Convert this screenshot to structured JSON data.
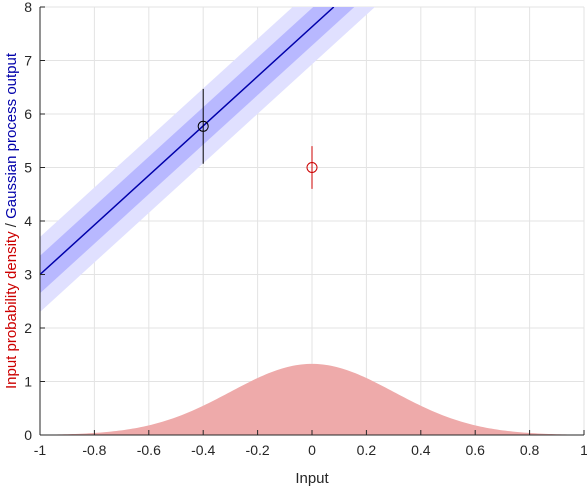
{
  "chart_data": {
    "type": "line",
    "xlabel": "Input",
    "ylabel_parts": [
      {
        "text": "Input probability density",
        "color": "#cc0000"
      },
      {
        "text": " / ",
        "color": "#262626"
      },
      {
        "text": "Gaussian process output",
        "color": "#0000aa"
      }
    ],
    "xlim": [
      -1,
      1
    ],
    "ylim": [
      0,
      8
    ],
    "xticks": [
      -1,
      -0.8,
      -0.6,
      -0.4,
      -0.2,
      0,
      0.2,
      0.4,
      0.6,
      0.8,
      1
    ],
    "xtick_labels": [
      "-1",
      "-0.8",
      "-0.6",
      "-0.4",
      "-0.2",
      "0",
      "0.2",
      "0.4",
      "0.6",
      "0.8",
      "1"
    ],
    "yticks": [
      0,
      1,
      2,
      3,
      4,
      5,
      6,
      7,
      8
    ],
    "ytick_labels": [
      "0",
      "1",
      "2",
      "3",
      "4",
      "5",
      "6",
      "7",
      "8"
    ],
    "grid": true,
    "gp_mean": {
      "x": [
        -1,
        0.08
      ],
      "y": [
        3.0,
        8.0
      ],
      "color": "#0000aa"
    },
    "gp_band_inner": {
      "halfwidth": 0.35,
      "color": "#b8b8ff"
    },
    "gp_band_outer": {
      "halfwidth": 0.7,
      "color": "#e0e0ff"
    },
    "input_density": {
      "mean": 0,
      "sd": 0.3,
      "peak": 1.33,
      "color": "#eeaaaa"
    },
    "points": [
      {
        "x": -0.4,
        "y": 5.77,
        "yerr": 0.7,
        "color": "#000000"
      },
      {
        "x": 0,
        "y": 5.0,
        "yerr": 0.4,
        "color": "#cc0000"
      }
    ]
  }
}
